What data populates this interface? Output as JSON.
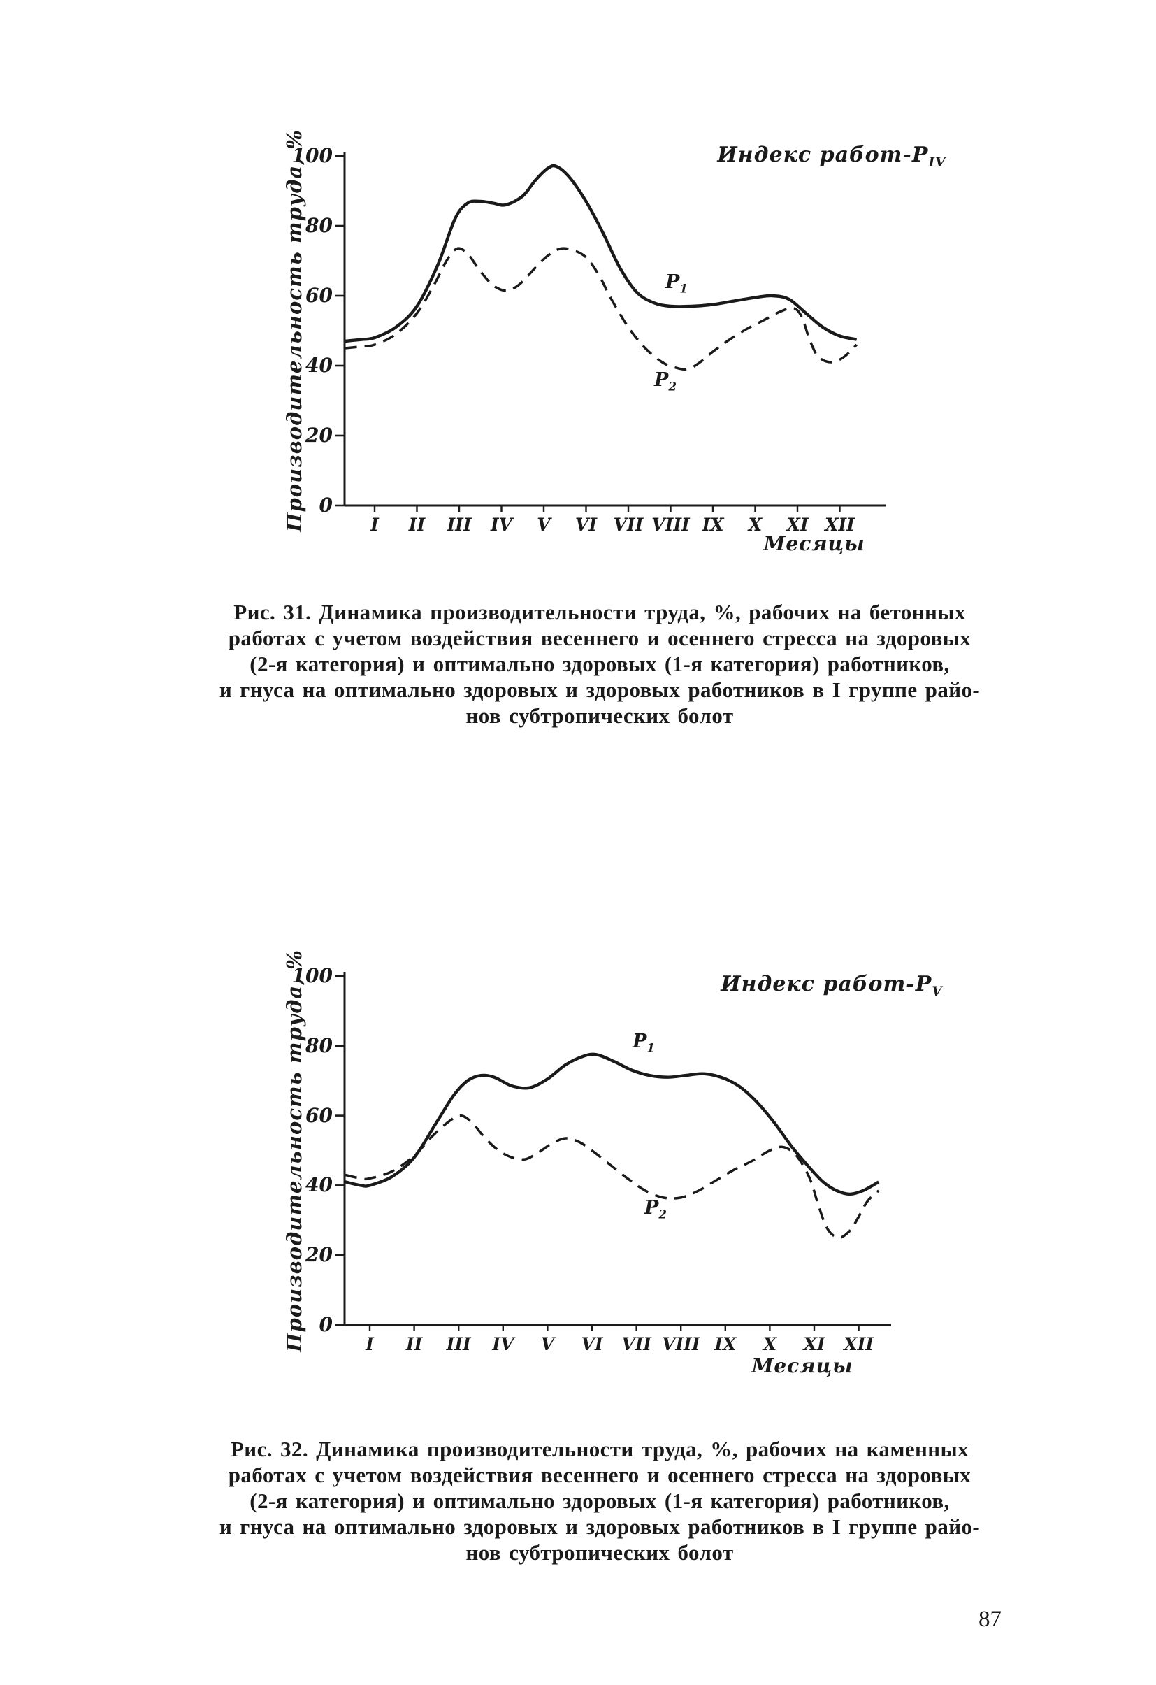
{
  "page": {
    "number": "87",
    "background": "#ffffff",
    "ink": "#1a1a1a"
  },
  "figures": [
    {
      "caption_lines": [
        "Рис. 31. Динамика производительности труда, %, рабочих на бетонных",
        "работах с учетом воздействия весеннего и осеннего стресса на здоровых",
        "(2-я категория) и оптимально здоровых (1-я категория) работников,",
        "и гнуса на оптимально здоровых и здоровых работников в I группе райо-",
        "нов субтропических болот"
      ]
    },
    {
      "caption_lines": [
        "Рис. 32. Динамика производительности труда, %, рабочих на каменных",
        "работах с учетом воздействия весеннего и осеннего стресса на здоровых",
        "(2-я категория) и оптимально здоровых (1-я категория) работников,",
        "и гнуса на оптимально здоровых и здоровых работников в I группе райо-",
        "нов субтропических болот"
      ]
    }
  ],
  "chart_data": [
    {
      "type": "line",
      "annotation": {
        "text": "Индекс работ-Р",
        "sub": "IV"
      },
      "ylabel": "Производительность труда, %",
      "xlabel": "Месяцы",
      "x_tick_labels": [
        "I",
        "II",
        "III",
        "IV",
        "V",
        "VI",
        "VII",
        "VIII",
        "IX",
        "X",
        "XI",
        "XII"
      ],
      "y_ticks": [
        0,
        20,
        40,
        60,
        80,
        100
      ],
      "ylim": [
        0,
        100
      ],
      "grid": false,
      "legend_position": "on-curve",
      "series": [
        {
          "label": "Р",
          "sub": "1",
          "line_style": "solid",
          "points": [
            [
              0.3,
              47
            ],
            [
              0.7,
              47.5
            ],
            [
              1,
              48
            ],
            [
              1.5,
              51
            ],
            [
              2,
              57
            ],
            [
              2.5,
              69
            ],
            [
              2.9,
              82
            ],
            [
              3.2,
              86.5
            ],
            [
              3.5,
              87
            ],
            [
              3.8,
              86.5
            ],
            [
              4.1,
              86
            ],
            [
              4.5,
              88.5
            ],
            [
              4.8,
              93
            ],
            [
              5.1,
              96.5
            ],
            [
              5.3,
              97
            ],
            [
              5.6,
              94
            ],
            [
              6,
              87
            ],
            [
              6.4,
              78
            ],
            [
              6.8,
              68
            ],
            [
              7.2,
              61
            ],
            [
              7.6,
              58
            ],
            [
              8,
              57
            ],
            [
              8.5,
              57
            ],
            [
              9,
              57.5
            ],
            [
              9.5,
              58.5
            ],
            [
              10,
              59.5
            ],
            [
              10.4,
              60
            ],
            [
              10.8,
              59
            ],
            [
              11.2,
              55
            ],
            [
              11.6,
              51
            ],
            [
              12,
              48.5
            ],
            [
              12.4,
              47.5
            ]
          ]
        },
        {
          "label": "Р",
          "sub": "2",
          "line_style": "dashed",
          "points": [
            [
              0.3,
              45
            ],
            [
              0.7,
              45.5
            ],
            [
              1,
              46
            ],
            [
              1.5,
              49
            ],
            [
              2,
              55
            ],
            [
              2.4,
              63
            ],
            [
              2.7,
              70
            ],
            [
              2.95,
              73.5
            ],
            [
              3.2,
              72
            ],
            [
              3.5,
              67
            ],
            [
              3.8,
              63
            ],
            [
              4.1,
              61.5
            ],
            [
              4.4,
              63
            ],
            [
              4.8,
              68
            ],
            [
              5.1,
              71.5
            ],
            [
              5.4,
              73.5
            ],
            [
              5.7,
              73
            ],
            [
              6,
              71
            ],
            [
              6.3,
              66
            ],
            [
              6.6,
              59
            ],
            [
              7,
              51
            ],
            [
              7.4,
              45
            ],
            [
              7.8,
              41
            ],
            [
              8.1,
              39.5
            ],
            [
              8.4,
              39
            ],
            [
              8.7,
              41
            ],
            [
              9,
              44
            ],
            [
              9.4,
              47.5
            ],
            [
              9.8,
              50.5
            ],
            [
              10.2,
              53
            ],
            [
              10.6,
              55.5
            ],
            [
              10.9,
              56.5
            ],
            [
              11.1,
              54
            ],
            [
              11.3,
              47
            ],
            [
              11.5,
              42.5
            ],
            [
              11.8,
              41
            ],
            [
              12.1,
              42.5
            ],
            [
              12.4,
              46
            ]
          ]
        }
      ]
    },
    {
      "type": "line",
      "annotation": {
        "text": "Индекс работ-Р",
        "sub": "V"
      },
      "ylabel": "Производительность труда, %",
      "xlabel": "Месяцы",
      "x_tick_labels": [
        "I",
        "II",
        "III",
        "IV",
        "V",
        "VI",
        "VII",
        "VIII",
        "IX",
        "X",
        "XI",
        "XII"
      ],
      "y_ticks": [
        0,
        20,
        40,
        60,
        80,
        100
      ],
      "ylim": [
        0,
        100
      ],
      "grid": false,
      "legend_position": "on-curve",
      "series": [
        {
          "label": "Р",
          "sub": "1",
          "line_style": "solid",
          "points": [
            [
              0.45,
              41
            ],
            [
              0.8,
              40
            ],
            [
              1,
              40
            ],
            [
              1.5,
              42.5
            ],
            [
              2,
              48
            ],
            [
              2.5,
              58
            ],
            [
              2.9,
              66
            ],
            [
              3.2,
              70
            ],
            [
              3.5,
              71.5
            ],
            [
              3.8,
              71
            ],
            [
              4.2,
              68.5
            ],
            [
              4.6,
              68
            ],
            [
              5,
              70.5
            ],
            [
              5.4,
              74.5
            ],
            [
              5.8,
              77
            ],
            [
              6.1,
              77.5
            ],
            [
              6.5,
              75.5
            ],
            [
              6.9,
              73
            ],
            [
              7.3,
              71.5
            ],
            [
              7.7,
              71
            ],
            [
              8.1,
              71.5
            ],
            [
              8.5,
              72
            ],
            [
              8.9,
              71
            ],
            [
              9.3,
              68.5
            ],
            [
              9.7,
              64
            ],
            [
              10.1,
              58
            ],
            [
              10.5,
              51
            ],
            [
              10.9,
              45
            ],
            [
              11.2,
              41
            ],
            [
              11.5,
              38.5
            ],
            [
              11.8,
              37.5
            ],
            [
              12.1,
              38.5
            ],
            [
              12.45,
              41
            ]
          ]
        },
        {
          "label": "Р",
          "sub": "2",
          "line_style": "dashed",
          "points": [
            [
              0.45,
              43
            ],
            [
              0.8,
              42
            ],
            [
              1,
              42
            ],
            [
              1.5,
              44
            ],
            [
              2,
              48.5
            ],
            [
              2.4,
              54
            ],
            [
              2.8,
              58.5
            ],
            [
              3.05,
              60
            ],
            [
              3.3,
              58
            ],
            [
              3.6,
              53.5
            ],
            [
              3.9,
              50
            ],
            [
              4.2,
              48
            ],
            [
              4.5,
              47.5
            ],
            [
              4.8,
              49.5
            ],
            [
              5.1,
              52
            ],
            [
              5.4,
              53.5
            ],
            [
              5.7,
              52.5
            ],
            [
              6,
              50
            ],
            [
              6.4,
              46
            ],
            [
              6.8,
              42
            ],
            [
              7.2,
              38.5
            ],
            [
              7.6,
              36.5
            ],
            [
              8,
              36.5
            ],
            [
              8.4,
              38.5
            ],
            [
              8.8,
              41.5
            ],
            [
              9.2,
              44.5
            ],
            [
              9.6,
              47
            ],
            [
              10,
              50
            ],
            [
              10.3,
              51
            ],
            [
              10.6,
              48.5
            ],
            [
              10.9,
              42
            ],
            [
              11.1,
              34
            ],
            [
              11.3,
              27.5
            ],
            [
              11.55,
              25
            ],
            [
              11.8,
              27
            ],
            [
              12,
              31
            ],
            [
              12.2,
              35.5
            ],
            [
              12.45,
              38.5
            ]
          ]
        }
      ]
    }
  ]
}
